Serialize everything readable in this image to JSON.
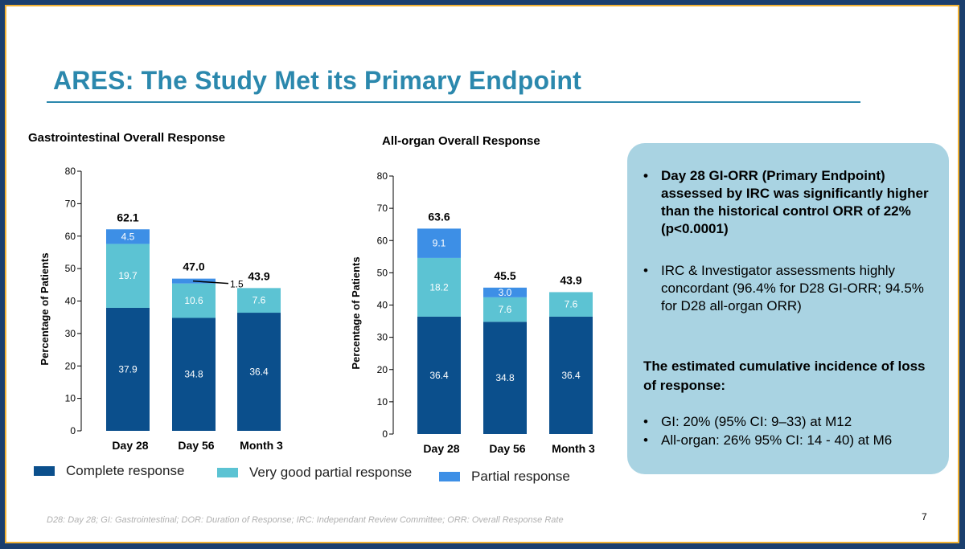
{
  "slide": {
    "title": "ARES: The Study Met its Primary Endpoint",
    "footnote": "D28: Day 28; GI: Gastrointestinal; DOR: Duration of Response; IRC: Independant Review Committee; ORR: Overall Response Rate",
    "page_number": "7",
    "colors": {
      "frame": "#1b3f6e",
      "frame_accent": "#f2b233",
      "title": "#2b88ad",
      "panel": "#a9d3e2"
    }
  },
  "legend": [
    {
      "label": "Complete response",
      "color": "#0b4f8c"
    },
    {
      "label": "Very good partial response",
      "color": "#5cc3d3"
    },
    {
      "label": "Partial response",
      "color": "#3d8fe6"
    }
  ],
  "panel": {
    "bullet_marker": "•",
    "bullet1": "Day 28 GI-ORR  (Primary Endpoint) assessed by IRC was significantly higher than the historical control ORR of 22% (p<0.0001)",
    "bullet2": "IRC & Investigator assessments highly concordant (96.4% for D28 GI-ORR; 94.5% for D28 all-organ ORR)",
    "heading": "The estimated cumulative incidence of loss of response:",
    "bullet3": "GI: 20% (95% CI: 9–33) at M12",
    "bullet4": "All-organ:  26% 95% CI: 14 - 40) at M6"
  },
  "chart_data": [
    {
      "type": "bar",
      "stacked": true,
      "title": "Gastrointestinal Overall Response",
      "ylabel": "Percentage of  Patients",
      "ylim": [
        0,
        80
      ],
      "yticks": [
        0,
        10,
        20,
        30,
        40,
        50,
        60,
        70,
        80
      ],
      "categories": [
        "Day 28",
        "Day 56",
        "Month 3"
      ],
      "series": [
        {
          "name": "Complete response",
          "values": [
            37.9,
            34.8,
            36.4
          ],
          "labels": [
            "37.9",
            "34.8",
            "36.4"
          ],
          "color": "#0b4f8c"
        },
        {
          "name": "Very good partial response",
          "values": [
            19.7,
            10.6,
            7.6
          ],
          "labels": [
            "19.7",
            "10.6",
            "7.6"
          ],
          "color": "#5cc3d3"
        },
        {
          "name": "Partial response",
          "values": [
            4.5,
            1.5,
            0
          ],
          "labels": [
            "4.5",
            "1.5",
            ""
          ],
          "color": "#3d8fe6"
        }
      ],
      "totals": [
        "62.1",
        "47.0",
        "43.9"
      ]
    },
    {
      "type": "bar",
      "stacked": true,
      "title": "All-organ Overall Response",
      "ylabel": "Percentage of  Patients",
      "ylim": [
        0,
        80
      ],
      "yticks": [
        0,
        10,
        20,
        30,
        40,
        50,
        60,
        70,
        80
      ],
      "categories": [
        "Day 28",
        "Day 56",
        "Month 3"
      ],
      "series": [
        {
          "name": "Complete response",
          "values": [
            36.4,
            34.8,
            36.4
          ],
          "labels": [
            "36.4",
            "34.8",
            "36.4"
          ],
          "color": "#0b4f8c"
        },
        {
          "name": "Very good partial response",
          "values": [
            18.2,
            7.6,
            7.6
          ],
          "labels": [
            "18.2",
            "7.6",
            "7.6"
          ],
          "color": "#5cc3d3"
        },
        {
          "name": "Partial response",
          "values": [
            9.1,
            3.0,
            0
          ],
          "labels": [
            "9.1",
            "3.0",
            ""
          ],
          "color": "#3d8fe6"
        }
      ],
      "totals": [
        "63.6",
        "45.5",
        "43.9"
      ]
    }
  ]
}
